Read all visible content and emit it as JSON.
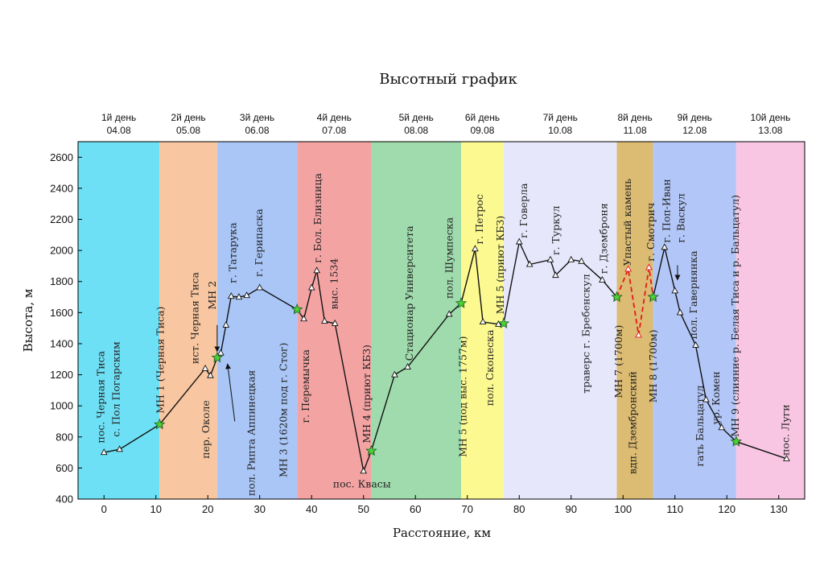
{
  "chart_data": {
    "type": "line",
    "title": "Высотный график",
    "xlabel": "Расстояние, км",
    "ylabel": "Высота, м",
    "xlim": [
      -5,
      135
    ],
    "ylim": [
      400,
      2700
    ],
    "xticks": [
      0,
      10,
      20,
      30,
      40,
      50,
      60,
      70,
      80,
      90,
      100,
      110,
      120,
      130
    ],
    "yticks": [
      400,
      600,
      800,
      1000,
      1200,
      1400,
      1600,
      1800,
      2000,
      2200,
      2400,
      2600
    ],
    "days": [
      {
        "label": "1й день",
        "date": "04.08",
        "x0": -5,
        "x1": 10.7,
        "color": "#6ee0f5"
      },
      {
        "label": "2й день",
        "date": "05.08",
        "x0": 10.7,
        "x1": 21.8,
        "color": "#f8c6a0"
      },
      {
        "label": "3й день",
        "date": "06.08",
        "x0": 21.8,
        "x1": 37.2,
        "color": "#a9c6f7"
      },
      {
        "label": "4й день",
        "date": "07.08",
        "x0": 37.2,
        "x1": 51.5,
        "color": "#f4a3a3"
      },
      {
        "label": "5й день",
        "date": "08.08",
        "x0": 51.5,
        "x1": 68.8,
        "color": "#9fdbac"
      },
      {
        "label": "6й день",
        "date": "09.08",
        "x0": 68.8,
        "x1": 77,
        "color": "#fbf98f"
      },
      {
        "label": "7й день",
        "date": "10.08",
        "x0": 77,
        "x1": 98.8,
        "color": "#e7e7fc"
      },
      {
        "label": "8й день",
        "date": "11.08",
        "x0": 98.8,
        "x1": 105.8,
        "color": "#dcbb72"
      },
      {
        "label": "9й день",
        "date": "12.08",
        "x0": 105.8,
        "x1": 121.8,
        "color": "#b2c6f7"
      },
      {
        "label": "10й день",
        "date": "13.08",
        "x0": 121.8,
        "x1": 135,
        "color": "#f8c6e2"
      }
    ],
    "series": [
      {
        "style": "solid",
        "x": [
          0,
          3,
          10.7,
          19.5,
          20.5,
          21.8,
          22.5,
          23.5,
          24.5,
          26,
          27.5,
          30,
          37.2,
          38.5,
          40,
          41,
          42.5,
          44.5,
          50,
          51.5,
          56,
          58.5,
          66.5,
          68.8,
          71.5,
          73,
          76,
          77,
          80,
          82,
          86,
          87,
          90,
          92,
          96,
          98.8
        ],
        "y": [
          700,
          720,
          880,
          1240,
          1195,
          1310,
          1340,
          1520,
          1705,
          1700,
          1710,
          1760,
          1620,
          1560,
          1760,
          1870,
          1545,
          1530,
          580,
          710,
          1200,
          1250,
          1590,
          1660,
          2010,
          1540,
          1525,
          1530,
          2055,
          1910,
          1940,
          1840,
          1940,
          1930,
          1810,
          1700
        ]
      },
      {
        "style": "dashed",
        "color": "#e31a1c",
        "x": [
          98.8,
          101,
          103,
          105,
          105.8
        ],
        "y": [
          1700,
          1880,
          1455,
          1890,
          1700
        ]
      },
      {
        "style": "solid",
        "x": [
          105.8,
          108,
          110,
          111,
          114,
          116,
          119,
          121.8,
          131.5
        ],
        "y": [
          1700,
          2020,
          1740,
          1600,
          1390,
          1040,
          860,
          770,
          660
        ]
      }
    ],
    "stars": [
      {
        "x": 10.7,
        "y": 880
      },
      {
        "x": 21.8,
        "y": 1310
      },
      {
        "x": 37.2,
        "y": 1620
      },
      {
        "x": 51.5,
        "y": 710
      },
      {
        "x": 68.8,
        "y": 1660
      },
      {
        "x": 77,
        "y": 1530
      },
      {
        "x": 98.8,
        "y": 1700
      },
      {
        "x": 105.8,
        "y": 1700
      },
      {
        "x": 121.8,
        "y": 770
      }
    ],
    "annotations": [
      {
        "text": "пос. Черная Тиса",
        "x": 0,
        "y": 760,
        "rot": -90
      },
      {
        "text": "с. Пол Погарским",
        "x": 3,
        "y": 800,
        "rot": -90
      },
      {
        "text": "МН 1 (Черная Тиса)",
        "x": 11.5,
        "y": 950,
        "rot": -90
      },
      {
        "text": "ист. Черная Тиса",
        "x": 18.2,
        "y": 1270,
        "rot": -90
      },
      {
        "text": "пер. Околе",
        "x": 20.3,
        "y": 660,
        "rot": -90
      },
      {
        "text": "МН 2",
        "x": 21.5,
        "y": 1620,
        "rot": -90
      },
      {
        "text": "г. Татарука",
        "x": 25.5,
        "y": 1790,
        "rot": -90
      },
      {
        "text": "г. Герипаска",
        "x": 30.5,
        "y": 1830,
        "rot": -90
      },
      {
        "text": "пол. Рипта Аппинецкая",
        "x": 29,
        "y": 420,
        "rot": -90
      },
      {
        "text": "МН 3 (1620м под г. Стог)",
        "x": 35.2,
        "y": 540,
        "rot": -90
      },
      {
        "text": "г. Перемычка",
        "x": 39.5,
        "y": 890,
        "rot": -90
      },
      {
        "text": "г. Бол. Близница",
        "x": 41.8,
        "y": 1920,
        "rot": -90
      },
      {
        "text": "выс. 1534",
        "x": 45,
        "y": 1620,
        "rot": -90
      },
      {
        "text": "МН 4 (приют КБЗ)",
        "x": 51.3,
        "y": 760,
        "rot": -90
      },
      {
        "text": "пос. Квасы",
        "x": 50,
        "y": 475,
        "rot": 0
      },
      {
        "text": "Стационар Университета",
        "x": 59.5,
        "y": 1290,
        "rot": -90
      },
      {
        "text": "пол. Шумпеска",
        "x": 67.2,
        "y": 1690,
        "rot": -90
      },
      {
        "text": "МН 5 (под выс. 1757м)",
        "x": 69.8,
        "y": 670,
        "rot": -90
      },
      {
        "text": "г. Петрос",
        "x": 73,
        "y": 2040,
        "rot": -90
      },
      {
        "text": "пол. Скопеска",
        "x": 75,
        "y": 1000,
        "rot": -90
      },
      {
        "text": "МН 5 (приют КБЗ)",
        "x": 77,
        "y": 1590,
        "rot": -90
      },
      {
        "text": "г. Говерла",
        "x": 81.5,
        "y": 2080,
        "rot": -90
      },
      {
        "text": "г. Туркул",
        "x": 87.7,
        "y": 1970,
        "rot": -90
      },
      {
        "text": "траверс г. Бребенскул",
        "x": 93.5,
        "y": 1080,
        "rot": -90
      },
      {
        "text": "г. Дземброня",
        "x": 96.9,
        "y": 1850,
        "rot": -90
      },
      {
        "text": "МН 7 (1700м)",
        "x": 99.8,
        "y": 1050,
        "rot": -90
      },
      {
        "text": "Упастый камень",
        "x": 101.5,
        "y": 1900,
        "rot": -90
      },
      {
        "text": "вдп. Дзембронский",
        "x": 102.5,
        "y": 560,
        "rot": -90
      },
      {
        "text": "г. Смотрич",
        "x": 106,
        "y": 1930,
        "rot": -90
      },
      {
        "text": "МН 8 (1700м)",
        "x": 106.5,
        "y": 1020,
        "rot": -90
      },
      {
        "text": "г. Поп-Иван",
        "x": 109,
        "y": 2050,
        "rot": -90
      },
      {
        "text": "г. Васкул",
        "x": 111.8,
        "y": 2050,
        "rot": -90
      },
      {
        "text": "пол. Гавернянка",
        "x": 114.2,
        "y": 1430,
        "rot": -90
      },
      {
        "text": "гать Бальцатул",
        "x": 115.5,
        "y": 610,
        "rot": -90
      },
      {
        "text": "ур. Комен",
        "x": 118.6,
        "y": 880,
        "rot": -90
      },
      {
        "text": "МН 9 (слияние р. Белая Тиса и р. Бальцатул)",
        "x": 122.3,
        "y": 800,
        "rot": -90
      },
      {
        "text": "пос. Луги",
        "x": 132,
        "y": 680,
        "rot": -90
      }
    ],
    "arrows": [
      {
        "x1": 21.8,
        "y1": 1520,
        "x2": 21.8,
        "y2": 1350
      },
      {
        "x1": 25.2,
        "y1": 900,
        "x2": 23.8,
        "y2": 1270
      },
      {
        "x1": 110.5,
        "y1": 1905,
        "x2": 110.5,
        "y2": 1810
      }
    ]
  }
}
